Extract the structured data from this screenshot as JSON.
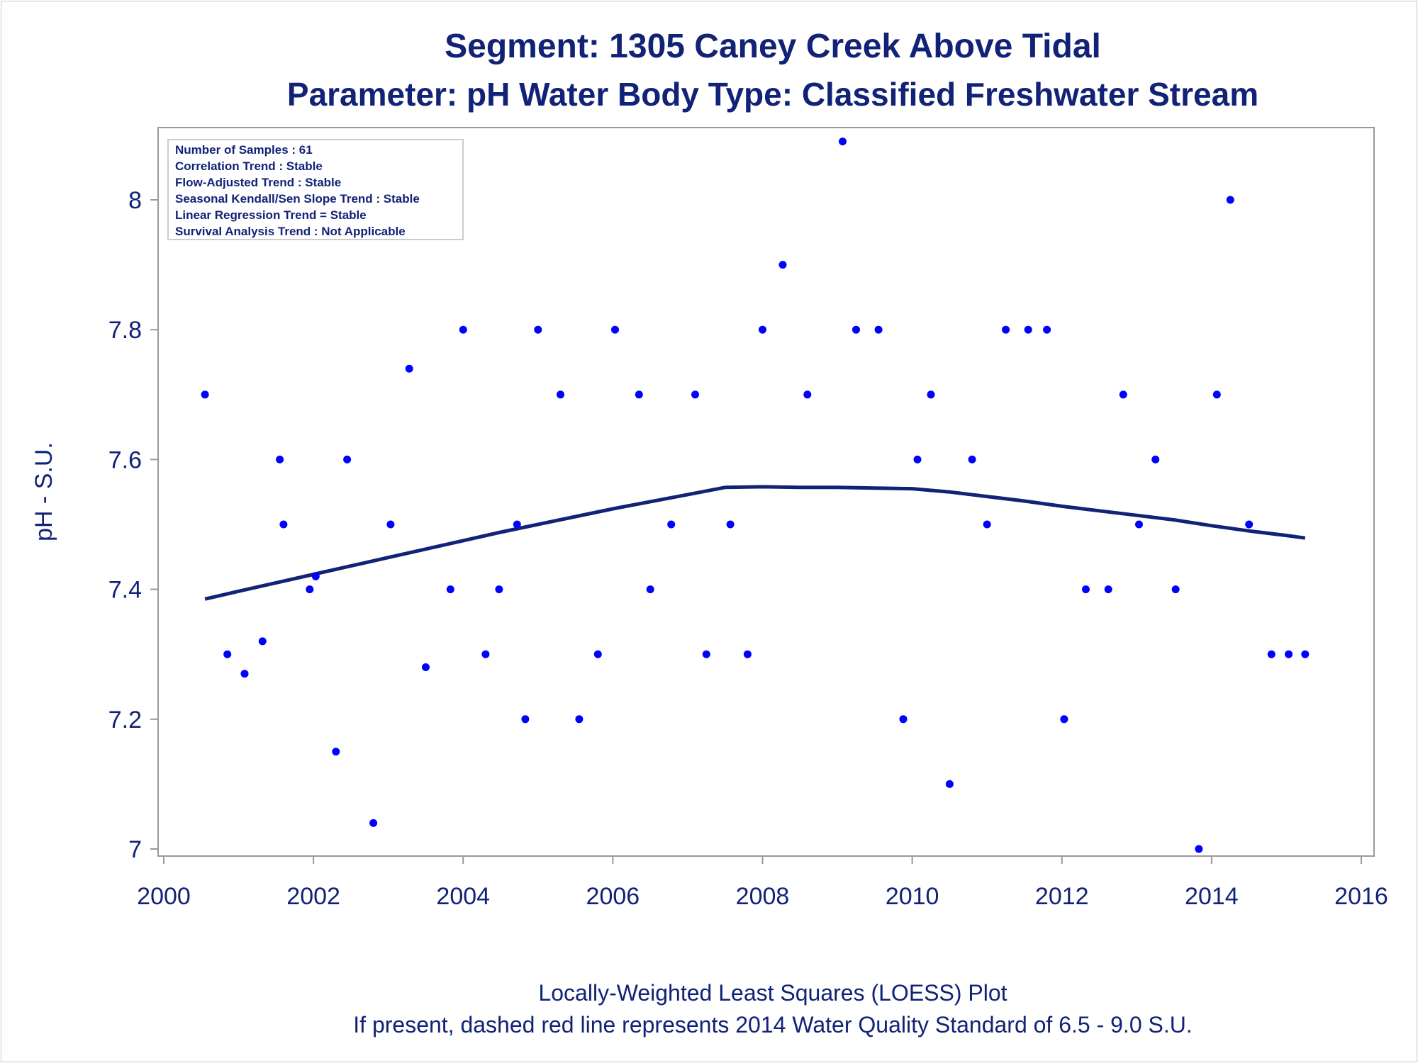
{
  "title": "Segment: 1305  Caney Creek Above Tidal",
  "subtitle": "Parameter: pH   Water Body Type: Classified Freshwater Stream",
  "footnotes": [
    "Locally-Weighted Least Squares (LOESS) Plot",
    "If present, dashed red line represents 2014 Water Quality Standard of 6.5 - 9.0 S.U."
  ],
  "chart_data": {
    "type": "scatter",
    "title": "Segment: 1305  Caney Creek Above Tidal",
    "subtitle": "Parameter: pH   Water Body Type: Classified Freshwater Stream",
    "xlabel": "",
    "ylabel": "pH - S.U.",
    "xlim": [
      2000,
      2016
    ],
    "ylim": [
      7.0,
      8.1
    ],
    "xticks": [
      2000,
      2002,
      2004,
      2006,
      2008,
      2010,
      2012,
      2014,
      2016
    ],
    "yticks": [
      7,
      7.2,
      7.4,
      7.6,
      7.8,
      8
    ],
    "grid": false,
    "legend_placement": "top-left",
    "annotations": [
      "Number of Samples : 61",
      "Correlation Trend : Stable",
      "Flow-Adjusted Trend : Stable",
      "Seasonal Kendall/Sen Slope Trend : Stable",
      "Linear Regression Trend = Stable",
      "Survival Analysis Trend : Not Applicable"
    ],
    "colors": {
      "points": "#0000ff",
      "loess": "#112277",
      "text": "#112277",
      "axis": "#999999"
    },
    "series": [
      {
        "type": "scatter",
        "points": [
          [
            2000.55,
            7.7
          ],
          [
            2000.85,
            7.3
          ],
          [
            2001.08,
            7.27
          ],
          [
            2001.32,
            7.32
          ],
          [
            2001.55,
            7.6
          ],
          [
            2001.6,
            7.5
          ],
          [
            2001.95,
            7.4
          ],
          [
            2002.03,
            7.42
          ],
          [
            2002.3,
            7.15
          ],
          [
            2002.45,
            7.6
          ],
          [
            2002.8,
            7.04
          ],
          [
            2003.03,
            7.5
          ],
          [
            2003.28,
            7.74
          ],
          [
            2003.5,
            7.28
          ],
          [
            2003.83,
            7.4
          ],
          [
            2004.0,
            7.8
          ],
          [
            2004.3,
            7.3
          ],
          [
            2004.48,
            7.4
          ],
          [
            2004.72,
            7.5
          ],
          [
            2004.83,
            7.2
          ],
          [
            2005.0,
            7.8
          ],
          [
            2005.3,
            7.7
          ],
          [
            2005.55,
            7.2
          ],
          [
            2005.8,
            7.3
          ],
          [
            2006.03,
            7.8
          ],
          [
            2006.35,
            7.7
          ],
          [
            2006.5,
            7.4
          ],
          [
            2006.78,
            7.5
          ],
          [
            2007.1,
            7.7
          ],
          [
            2007.25,
            7.3
          ],
          [
            2007.57,
            7.5
          ],
          [
            2007.8,
            7.3
          ],
          [
            2008.0,
            7.8
          ],
          [
            2008.27,
            7.9
          ],
          [
            2008.6,
            7.7
          ],
          [
            2009.07,
            8.09
          ],
          [
            2009.25,
            7.8
          ],
          [
            2009.55,
            7.8
          ],
          [
            2009.88,
            7.2
          ],
          [
            2010.07,
            7.6
          ],
          [
            2010.25,
            7.7
          ],
          [
            2010.5,
            7.1
          ],
          [
            2010.8,
            7.6
          ],
          [
            2011.0,
            7.5
          ],
          [
            2011.25,
            7.8
          ],
          [
            2011.55,
            7.8
          ],
          [
            2011.8,
            7.8
          ],
          [
            2012.03,
            7.2
          ],
          [
            2012.32,
            7.4
          ],
          [
            2012.62,
            7.4
          ],
          [
            2012.82,
            7.7
          ],
          [
            2013.03,
            7.5
          ],
          [
            2013.25,
            7.6
          ],
          [
            2013.52,
            7.4
          ],
          [
            2013.83,
            7.0
          ],
          [
            2014.07,
            7.7
          ],
          [
            2014.25,
            8.0
          ],
          [
            2014.5,
            7.5
          ],
          [
            2014.8,
            7.3
          ],
          [
            2015.03,
            7.3
          ],
          [
            2015.25,
            7.3
          ]
        ]
      },
      {
        "type": "line",
        "points": [
          [
            2000.55,
            7.385
          ],
          [
            2001.0,
            7.397
          ],
          [
            2001.5,
            7.41
          ],
          [
            2002.0,
            7.423
          ],
          [
            2002.5,
            7.436
          ],
          [
            2003.0,
            7.449
          ],
          [
            2003.5,
            7.462
          ],
          [
            2004.0,
            7.475
          ],
          [
            2004.5,
            7.488
          ],
          [
            2005.0,
            7.5
          ],
          [
            2005.5,
            7.512
          ],
          [
            2006.0,
            7.524
          ],
          [
            2006.5,
            7.535
          ],
          [
            2007.0,
            7.546
          ],
          [
            2007.5,
            7.557
          ],
          [
            2008.0,
            7.558
          ],
          [
            2008.5,
            7.557
          ],
          [
            2009.0,
            7.557
          ],
          [
            2009.5,
            7.556
          ],
          [
            2010.0,
            7.555
          ],
          [
            2010.5,
            7.55
          ],
          [
            2011.0,
            7.543
          ],
          [
            2011.5,
            7.536
          ],
          [
            2012.0,
            7.528
          ],
          [
            2012.5,
            7.521
          ],
          [
            2013.0,
            7.514
          ],
          [
            2013.5,
            7.507
          ],
          [
            2014.0,
            7.498
          ],
          [
            2014.5,
            7.49
          ],
          [
            2015.0,
            7.483
          ],
          [
            2015.25,
            7.479
          ]
        ]
      }
    ]
  }
}
